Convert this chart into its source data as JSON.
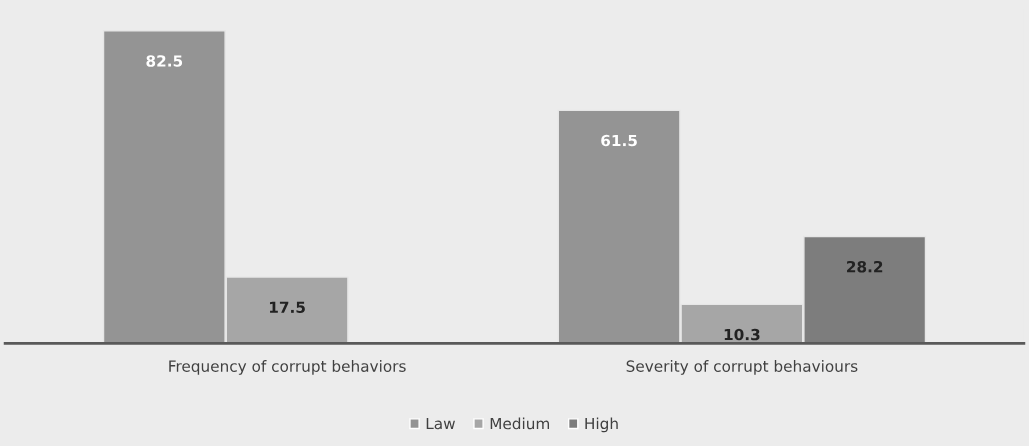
{
  "chart_data": {
    "type": "bar",
    "categories": [
      "Frequency of corrupt behaviors",
      "Severity of corrupt behaviours"
    ],
    "series": [
      {
        "name": "Law",
        "color": "#949494",
        "values": [
          82.5,
          61.5
        ]
      },
      {
        "name": "Medium",
        "color": "#a6a6a6",
        "values": [
          17.5,
          10.3
        ]
      },
      {
        "name": "High",
        "color": "#7d7d7d",
        "values": [
          null,
          28.2
        ]
      }
    ],
    "data_labels": true,
    "legend": "bottom",
    "grid": false
  }
}
